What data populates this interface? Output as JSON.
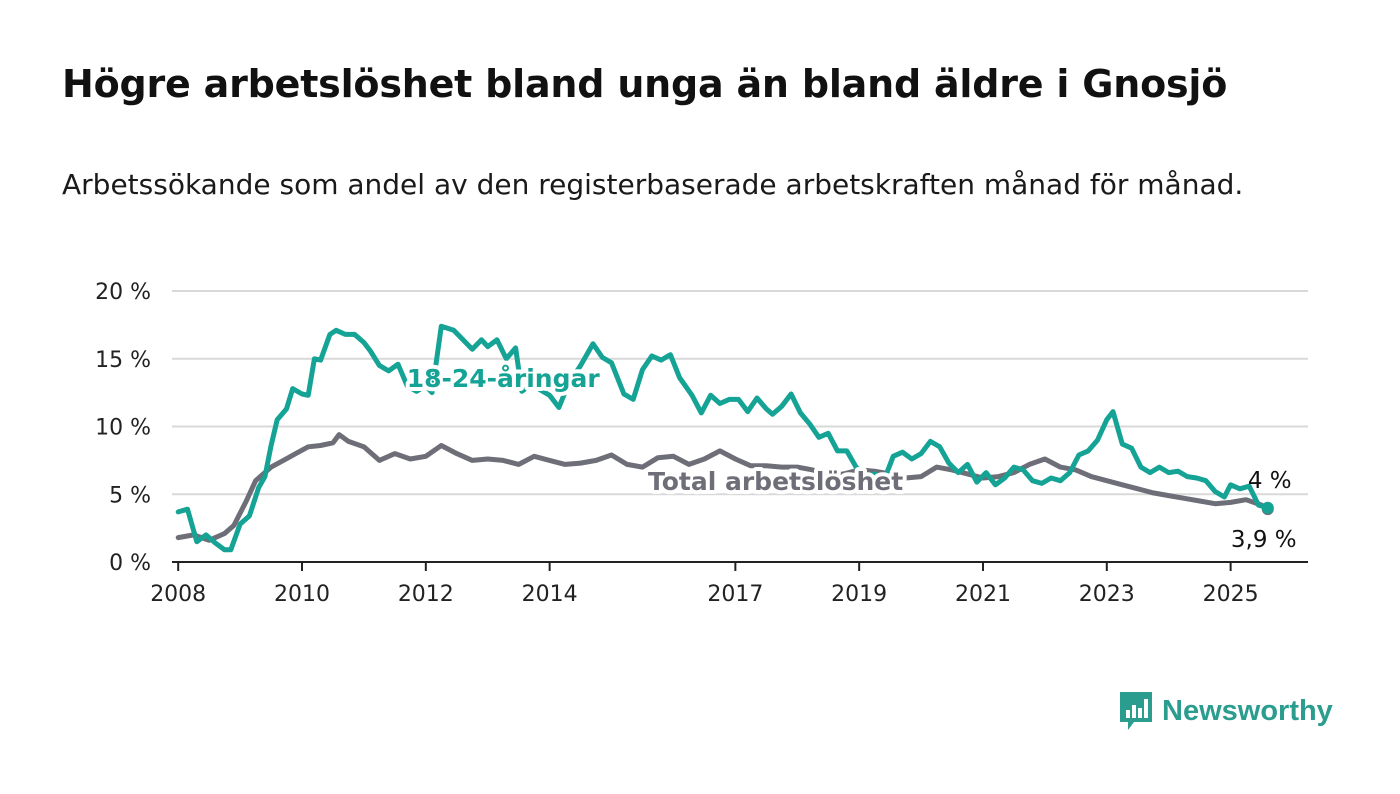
{
  "title": "Högre arbetslöshet bland unga än bland äldre i Gnosjö",
  "subtitle": "Arbetssökande som andel av den registerbaserade arbetskraften månad för månad.",
  "brand": {
    "name": "Newsworthy",
    "icon": "newsworthy-logo-icon",
    "color": "#2a9d8f"
  },
  "chart_data": {
    "type": "line",
    "title": "Högre arbetslöshet bland unga än bland äldre i Gnosjö",
    "subtitle": "Arbetssökande som andel av den registerbaserade arbetskraften månad för månad.",
    "xlabel": "",
    "ylabel": "",
    "xlim": [
      2007.9,
      2026.25
    ],
    "ylim": [
      0,
      20
    ],
    "y_ticks": [
      0,
      5,
      10,
      15,
      20
    ],
    "y_tick_labels": [
      "0 %",
      "5 %",
      "10 %",
      "15 %",
      "20 %"
    ],
    "x_ticks": [
      2008,
      2010,
      2012,
      2014,
      2017,
      2019,
      2021,
      2023,
      2025
    ],
    "x_tick_labels": [
      "2008",
      "2010",
      "2012",
      "2014",
      "2017",
      "2019",
      "2021",
      "2023",
      "2025"
    ],
    "grid": true,
    "series": [
      {
        "name": "Total arbetslöshet",
        "color": "#6e6e78",
        "end_label": "3,9 %",
        "points": [
          [
            2008.0,
            1.8
          ],
          [
            2008.25,
            2.0
          ],
          [
            2008.5,
            1.6
          ],
          [
            2008.75,
            2.1
          ],
          [
            2008.9,
            2.7
          ],
          [
            2009.1,
            4.5
          ],
          [
            2009.25,
            6.0
          ],
          [
            2009.5,
            7.0
          ],
          [
            2009.7,
            7.5
          ],
          [
            2009.9,
            8.0
          ],
          [
            2010.1,
            8.5
          ],
          [
            2010.3,
            8.6
          ],
          [
            2010.5,
            8.8
          ],
          [
            2010.6,
            9.4
          ],
          [
            2010.75,
            8.9
          ],
          [
            2011.0,
            8.5
          ],
          [
            2011.25,
            7.5
          ],
          [
            2011.5,
            8.0
          ],
          [
            2011.75,
            7.6
          ],
          [
            2012.0,
            7.8
          ],
          [
            2012.25,
            8.6
          ],
          [
            2012.5,
            8.0
          ],
          [
            2012.75,
            7.5
          ],
          [
            2013.0,
            7.6
          ],
          [
            2013.25,
            7.5
          ],
          [
            2013.5,
            7.2
          ],
          [
            2013.75,
            7.8
          ],
          [
            2014.0,
            7.5
          ],
          [
            2014.25,
            7.2
          ],
          [
            2014.5,
            7.3
          ],
          [
            2014.75,
            7.5
          ],
          [
            2015.0,
            7.9
          ],
          [
            2015.25,
            7.2
          ],
          [
            2015.5,
            7.0
          ],
          [
            2015.75,
            7.7
          ],
          [
            2016.0,
            7.8
          ],
          [
            2016.25,
            7.2
          ],
          [
            2016.5,
            7.6
          ],
          [
            2016.75,
            8.2
          ],
          [
            2017.0,
            7.6
          ],
          [
            2017.25,
            7.1
          ],
          [
            2017.5,
            7.1
          ],
          [
            2017.75,
            7.0
          ],
          [
            2018.0,
            7.0
          ],
          [
            2018.25,
            6.8
          ],
          [
            2018.5,
            6.3
          ],
          [
            2018.75,
            6.5
          ],
          [
            2019.0,
            6.8
          ],
          [
            2019.25,
            6.7
          ],
          [
            2019.5,
            6.5
          ],
          [
            2019.75,
            6.2
          ],
          [
            2020.0,
            6.3
          ],
          [
            2020.25,
            7.0
          ],
          [
            2020.5,
            6.8
          ],
          [
            2020.75,
            6.5
          ],
          [
            2021.0,
            6.2
          ],
          [
            2021.25,
            6.3
          ],
          [
            2021.5,
            6.6
          ],
          [
            2021.75,
            7.2
          ],
          [
            2022.0,
            7.6
          ],
          [
            2022.25,
            7.0
          ],
          [
            2022.5,
            6.8
          ],
          [
            2022.75,
            6.3
          ],
          [
            2023.0,
            6.0
          ],
          [
            2023.25,
            5.7
          ],
          [
            2023.5,
            5.4
          ],
          [
            2023.75,
            5.1
          ],
          [
            2024.0,
            4.9
          ],
          [
            2024.25,
            4.7
          ],
          [
            2024.5,
            4.5
          ],
          [
            2024.75,
            4.3
          ],
          [
            2025.0,
            4.4
          ],
          [
            2025.25,
            4.6
          ],
          [
            2025.5,
            4.2
          ],
          [
            2025.6,
            3.9
          ]
        ]
      },
      {
        "name": "18-24-åringar",
        "color": "#14a394",
        "end_label": "4 %",
        "points": [
          [
            2008.0,
            3.7
          ],
          [
            2008.15,
            3.9
          ],
          [
            2008.3,
            1.5
          ],
          [
            2008.45,
            2.0
          ],
          [
            2008.6,
            1.4
          ],
          [
            2008.75,
            0.9
          ],
          [
            2008.85,
            0.9
          ],
          [
            2009.0,
            2.8
          ],
          [
            2009.15,
            3.4
          ],
          [
            2009.3,
            5.5
          ],
          [
            2009.4,
            6.3
          ],
          [
            2009.5,
            8.6
          ],
          [
            2009.6,
            10.5
          ],
          [
            2009.75,
            11.3
          ],
          [
            2009.85,
            12.8
          ],
          [
            2010.0,
            12.4
          ],
          [
            2010.1,
            12.3
          ],
          [
            2010.2,
            15.0
          ],
          [
            2010.3,
            14.9
          ],
          [
            2010.45,
            16.8
          ],
          [
            2010.55,
            17.1
          ],
          [
            2010.7,
            16.8
          ],
          [
            2010.85,
            16.8
          ],
          [
            2011.0,
            16.2
          ],
          [
            2011.1,
            15.6
          ],
          [
            2011.25,
            14.5
          ],
          [
            2011.4,
            14.1
          ],
          [
            2011.55,
            14.6
          ],
          [
            2011.7,
            13.0
          ],
          [
            2011.85,
            12.6
          ],
          [
            2012.0,
            13.0
          ],
          [
            2012.1,
            12.5
          ],
          [
            2012.25,
            17.4
          ],
          [
            2012.45,
            17.1
          ],
          [
            2012.6,
            16.4
          ],
          [
            2012.75,
            15.7
          ],
          [
            2012.9,
            16.4
          ],
          [
            2013.0,
            15.9
          ],
          [
            2013.15,
            16.4
          ],
          [
            2013.3,
            15.0
          ],
          [
            2013.45,
            15.8
          ],
          [
            2013.55,
            12.6
          ],
          [
            2013.7,
            13.1
          ],
          [
            2013.85,
            12.7
          ],
          [
            2014.0,
            12.3
          ],
          [
            2014.15,
            11.4
          ],
          [
            2014.3,
            13.1
          ],
          [
            2014.5,
            14.5
          ],
          [
            2014.7,
            16.1
          ],
          [
            2014.85,
            15.1
          ],
          [
            2015.0,
            14.7
          ],
          [
            2015.2,
            12.4
          ],
          [
            2015.35,
            12.0
          ],
          [
            2015.5,
            14.2
          ],
          [
            2015.65,
            15.2
          ],
          [
            2015.8,
            14.9
          ],
          [
            2015.95,
            15.3
          ],
          [
            2016.1,
            13.6
          ],
          [
            2016.3,
            12.3
          ],
          [
            2016.45,
            11.0
          ],
          [
            2016.6,
            12.3
          ],
          [
            2016.75,
            11.7
          ],
          [
            2016.9,
            12.0
          ],
          [
            2017.05,
            12.0
          ],
          [
            2017.2,
            11.1
          ],
          [
            2017.35,
            12.1
          ],
          [
            2017.5,
            11.3
          ],
          [
            2017.6,
            10.9
          ],
          [
            2017.75,
            11.5
          ],
          [
            2017.9,
            12.4
          ],
          [
            2018.05,
            11.0
          ],
          [
            2018.2,
            10.2
          ],
          [
            2018.35,
            9.2
          ],
          [
            2018.5,
            9.5
          ],
          [
            2018.65,
            8.2
          ],
          [
            2018.8,
            8.2
          ],
          [
            2018.95,
            7.0
          ],
          [
            2019.1,
            6.3
          ],
          [
            2019.25,
            6.5
          ],
          [
            2019.4,
            6.0
          ],
          [
            2019.55,
            7.8
          ],
          [
            2019.7,
            8.1
          ],
          [
            2019.85,
            7.6
          ],
          [
            2020.0,
            8.0
          ],
          [
            2020.15,
            8.9
          ],
          [
            2020.3,
            8.5
          ],
          [
            2020.45,
            7.3
          ],
          [
            2020.6,
            6.6
          ],
          [
            2020.75,
            7.2
          ],
          [
            2020.9,
            5.9
          ],
          [
            2021.05,
            6.6
          ],
          [
            2021.2,
            5.7
          ],
          [
            2021.35,
            6.2
          ],
          [
            2021.5,
            7.0
          ],
          [
            2021.65,
            6.8
          ],
          [
            2021.8,
            6.0
          ],
          [
            2021.95,
            5.8
          ],
          [
            2022.1,
            6.2
          ],
          [
            2022.25,
            6.0
          ],
          [
            2022.4,
            6.6
          ],
          [
            2022.55,
            7.9
          ],
          [
            2022.7,
            8.2
          ],
          [
            2022.85,
            9.0
          ],
          [
            2023.0,
            10.5
          ],
          [
            2023.1,
            11.1
          ],
          [
            2023.25,
            8.7
          ],
          [
            2023.4,
            8.4
          ],
          [
            2023.55,
            7.0
          ],
          [
            2023.7,
            6.6
          ],
          [
            2023.85,
            7.0
          ],
          [
            2024.0,
            6.6
          ],
          [
            2024.15,
            6.7
          ],
          [
            2024.3,
            6.3
          ],
          [
            2024.45,
            6.2
          ],
          [
            2024.6,
            6.0
          ],
          [
            2024.75,
            5.2
          ],
          [
            2024.9,
            4.8
          ],
          [
            2025.0,
            5.7
          ],
          [
            2025.15,
            5.4
          ],
          [
            2025.3,
            5.6
          ],
          [
            2025.45,
            4.2
          ],
          [
            2025.6,
            4.0
          ]
        ]
      }
    ],
    "annotations": [
      {
        "text": "18-24-åringar",
        "x": 2013.25,
        "y": 12.9,
        "series": "18-24-åringar"
      },
      {
        "text": "Total arbetslöshet",
        "x": 2017.65,
        "y": 5.3,
        "series": "Total arbetslöshet"
      }
    ]
  }
}
